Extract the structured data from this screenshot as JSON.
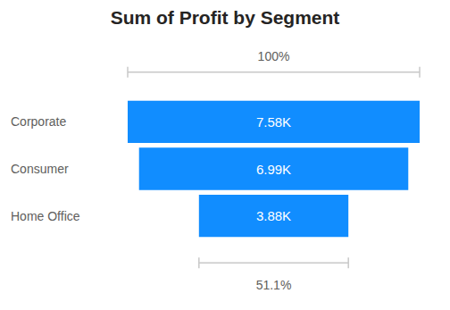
{
  "chart_data": {
    "type": "funnel",
    "title": "Sum of Profit by Segment",
    "categories": [
      "Corporate",
      "Consumer",
      "Home Office"
    ],
    "values": [
      7580,
      6990,
      3880
    ],
    "value_labels": [
      "7.58K",
      "6.99K",
      "3.88K"
    ],
    "color": "#118dff",
    "data_labels": true,
    "annotations": [
      "100%",
      "51.1%"
    ]
  }
}
